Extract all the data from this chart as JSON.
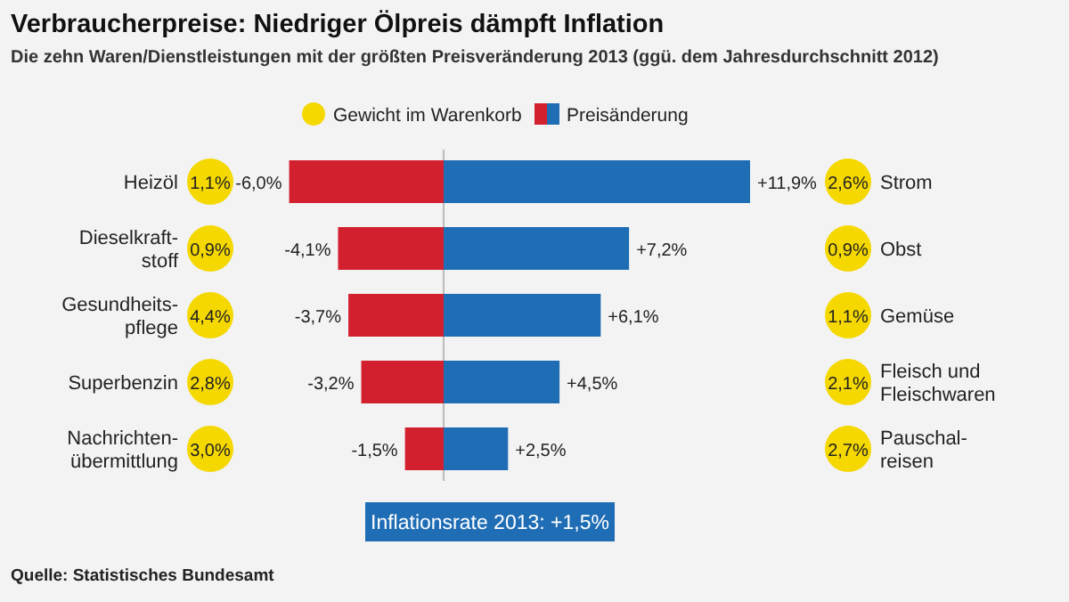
{
  "chart_data": [
    {
      "type": "bar",
      "orientation": "horizontal",
      "title": "Verbraucherpreise: Niedriger Ölpreis dämpft Inflation",
      "subtitle": "Die zehn Waren/Dienstleistungen mit der größten Preisveränderung 2013 (ggü. dem Jahresdurchschnitt 2012)",
      "legend": "top",
      "categories": [
        "Heizöl",
        "Dieselkraft-\nstoff",
        "Gesundheits-\npflege",
        "Superbenzin",
        "Nachrichten-\nübermittlung"
      ],
      "series": [
        {
          "name": "Preisänderung",
          "color": "#d3202f",
          "values": [
            -6.0,
            -4.1,
            -3.7,
            -3.2,
            -1.5
          ],
          "value_labels": [
            "-6,0%",
            "-4,1%",
            "-3,7%",
            "-3,2%",
            "-1,5%"
          ]
        }
      ],
      "annotations": [
        "Gewicht im Warenkorb",
        "Inflationsrate 2013:  +1,5%",
        "Quelle: Statistisches Bundesamt",
        "1,1%",
        "0,9%",
        "4,4%",
        "2,8%",
        "3,0%"
      ]
    },
    {
      "type": "bar",
      "orientation": "horizontal",
      "categories": [
        "Strom",
        "Obst",
        "Gemüse",
        "Fleisch und\nFleischwaren",
        "Pauschal-\nreisen"
      ],
      "series": [
        {
          "name": "Preisänderung",
          "color": "#1f6db5",
          "values": [
            11.9,
            7.2,
            6.1,
            4.5,
            2.5
          ],
          "value_labels": [
            "+11,9%",
            "+7,2%",
            "+6,1%",
            "+4,5%",
            "+2,5%"
          ]
        }
      ],
      "annotations": [
        "2,6%",
        "0,9%",
        "1,1%",
        "2,1%",
        "2,7%"
      ]
    }
  ]
}
